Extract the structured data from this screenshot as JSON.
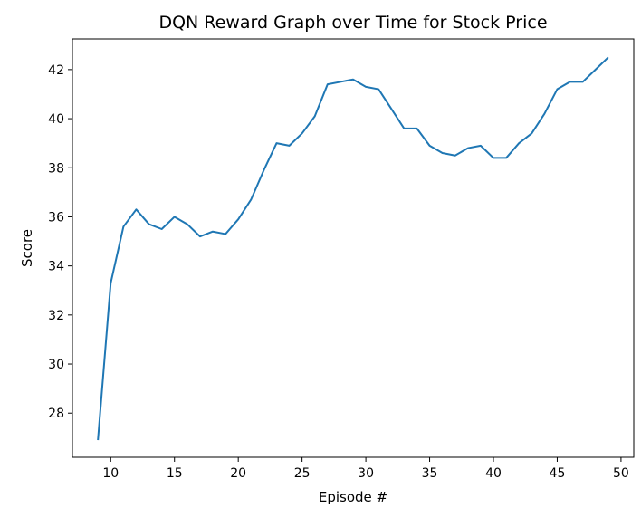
{
  "chart_data": {
    "type": "line",
    "title": "DQN Reward Graph over Time for Stock Price",
    "xlabel": "Episode #",
    "ylabel": "Score",
    "xlim": [
      7.0,
      51.0
    ],
    "ylim": [
      26.2,
      43.25
    ],
    "x_ticks": [
      10,
      15,
      20,
      25,
      30,
      35,
      40,
      45,
      50
    ],
    "y_ticks": [
      28,
      30,
      32,
      34,
      36,
      38,
      40,
      42
    ],
    "grid": false,
    "legend": "none",
    "series": [
      {
        "color": "#1f77b4",
        "x": [
          9,
          10,
          11,
          12,
          13,
          14,
          15,
          16,
          17,
          18,
          19,
          20,
          21,
          22,
          23,
          24,
          25,
          26,
          27,
          28,
          29,
          30,
          31,
          32,
          33,
          34,
          35,
          36,
          37,
          38,
          39,
          40,
          41,
          42,
          43,
          44,
          45,
          46,
          47,
          48,
          49
        ],
        "y": [
          26.9,
          33.3,
          35.6,
          36.3,
          35.7,
          35.5,
          36.0,
          35.7,
          35.2,
          35.4,
          35.3,
          35.9,
          36.7,
          37.9,
          39.0,
          38.9,
          39.4,
          40.1,
          41.4,
          41.5,
          41.6,
          41.3,
          41.2,
          40.4,
          39.6,
          39.6,
          38.9,
          38.6,
          38.5,
          38.8,
          38.9,
          38.4,
          38.4,
          39.0,
          39.4,
          40.2,
          41.2,
          41.5,
          41.5,
          42.0,
          42.5
        ]
      }
    ]
  }
}
